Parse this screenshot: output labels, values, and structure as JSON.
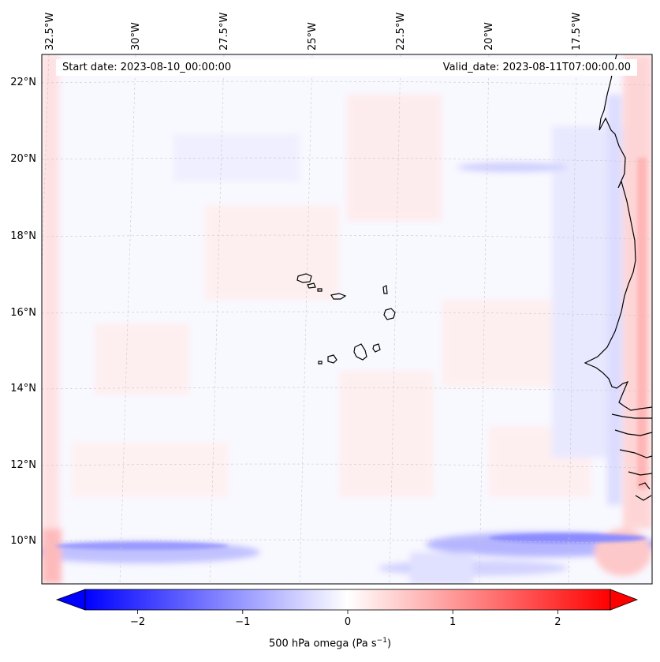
{
  "map": {
    "start_date_label": "Start date: 2023-08-10_00:00:00",
    "valid_date_label": "Valid_date: 2023-08-11T07:00:00.00",
    "longitude_labels": [
      "32.5°W",
      "30°W",
      "27.5°W",
      "25°W",
      "22.5°W",
      "20°W",
      "17.5°W"
    ],
    "latitude_labels": [
      "22°N",
      "20°N",
      "18°N",
      "16°N",
      "14°N",
      "12°N",
      "10°N"
    ],
    "colorbar": {
      "ticks": [
        "−2",
        "−1",
        "0",
        "1",
        "2"
      ],
      "tick_values": [
        -2,
        -1,
        0,
        1,
        2
      ],
      "range": [
        -2.5,
        2.5
      ],
      "label_text": "500 hPa omega (Pa s",
      "label_exponent": "−1",
      "label_suffix": ")"
    },
    "colors": {
      "negative": "#0000ff",
      "zero": "#ffffff",
      "positive": "#ff0000",
      "coastline": "#000000",
      "gridline": "#bbbbbb"
    }
  }
}
